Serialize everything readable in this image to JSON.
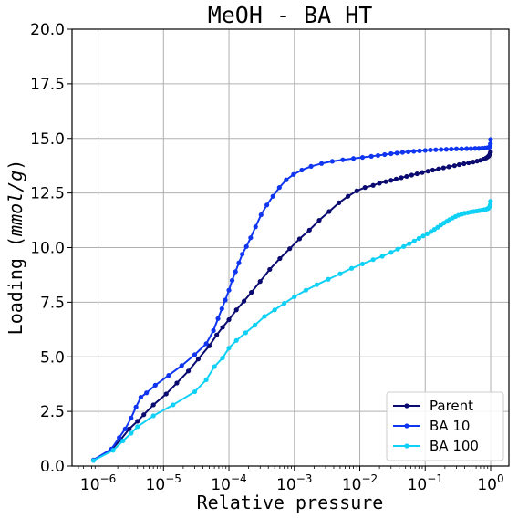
{
  "chart_data": {
    "type": "line",
    "title": "MeOH - BA HT",
    "xlabel": "Relative pressure",
    "ylabel": "Loading (mmol/g)",
    "ylabel_prefix": "Loading",
    "ylabel_unit": "mmol/g",
    "x_scale": "log",
    "xlim": [
      4e-07,
      1.9
    ],
    "ylim": [
      0,
      20
    ],
    "x_ticks": [
      1e-06,
      1e-05,
      0.0001,
      0.001,
      0.01,
      0.1,
      1
    ],
    "x_tick_exponents": [
      "−6",
      "−5",
      "−4",
      "−3",
      "−2",
      "−1",
      "0"
    ],
    "x_tick_base": "10",
    "y_ticks": [
      0,
      2.5,
      5,
      7.5,
      10,
      12.5,
      15,
      17.5,
      20
    ],
    "y_tick_labels": [
      "0.0",
      "2.5",
      "5.0",
      "7.5",
      "10.0",
      "12.5",
      "15.0",
      "17.5",
      "20.0"
    ],
    "grid": true,
    "legend_position": "lower-right",
    "series": [
      {
        "name": "Parent",
        "color": "#0a0a70",
        "x": [
          8.5e-07,
          1.6e-06,
          2.2e-06,
          3e-06,
          4e-06,
          5e-06,
          7e-06,
          1.1e-05,
          1.6e-05,
          2.4e-05,
          3.4e-05,
          5e-05,
          6.5e-05,
          8e-05,
          0.0001,
          0.00013,
          0.00017,
          0.00022,
          0.0003,
          0.00042,
          0.0006,
          0.00085,
          0.0012,
          0.0017,
          0.0024,
          0.0034,
          0.0048,
          0.0066,
          0.009,
          0.012,
          0.016,
          0.02,
          0.025,
          0.03,
          0.036,
          0.043,
          0.052,
          0.062,
          0.075,
          0.09,
          0.11,
          0.13,
          0.16,
          0.19,
          0.23,
          0.28,
          0.33,
          0.39,
          0.46,
          0.54,
          0.62,
          0.7,
          0.78,
          0.85,
          0.9,
          0.94,
          0.97,
          0.985,
          0.995
        ],
        "y": [
          0.27,
          0.75,
          1.2,
          1.7,
          2.05,
          2.35,
          2.8,
          3.3,
          3.8,
          4.35,
          4.9,
          5.5,
          6.0,
          6.35,
          6.7,
          7.15,
          7.55,
          7.95,
          8.45,
          9.0,
          9.5,
          9.95,
          10.4,
          10.8,
          11.25,
          11.65,
          12.05,
          12.35,
          12.6,
          12.75,
          12.85,
          12.95,
          13.02,
          13.08,
          13.14,
          13.2,
          13.26,
          13.32,
          13.38,
          13.44,
          13.5,
          13.55,
          13.6,
          13.65,
          13.7,
          13.75,
          13.8,
          13.84,
          13.88,
          13.92,
          13.96,
          14.0,
          14.05,
          14.1,
          14.15,
          14.2,
          14.27,
          14.33,
          14.38
        ]
      },
      {
        "name": "BA 10",
        "color": "#0f35f0",
        "x": [
          8.5e-07,
          1.6e-06,
          2.1e-06,
          2.6e-06,
          3.2e-06,
          3.8e-06,
          4.5e-06,
          5.5e-06,
          7.5e-06,
          1.2e-05,
          1.9e-05,
          3e-05,
          4.5e-05,
          5.8e-05,
          6.8e-05,
          7.8e-05,
          8.8e-05,
          0.0001,
          0.000112,
          0.000126,
          0.000142,
          0.00016,
          0.000185,
          0.000215,
          0.000255,
          0.00031,
          0.00038,
          0.00047,
          0.00059,
          0.00075,
          0.00097,
          0.0013,
          0.0018,
          0.0026,
          0.0038,
          0.0055,
          0.008,
          0.011,
          0.015,
          0.019,
          0.024,
          0.03,
          0.037,
          0.045,
          0.055,
          0.067,
          0.082,
          0.1,
          0.12,
          0.145,
          0.175,
          0.21,
          0.25,
          0.3,
          0.36,
          0.43,
          0.5,
          0.58,
          0.66,
          0.74,
          0.82,
          0.88,
          0.93,
          0.96,
          0.98,
          0.99,
          0.997
        ],
        "y": [
          0.28,
          0.78,
          1.3,
          1.7,
          2.2,
          2.7,
          3.15,
          3.35,
          3.7,
          4.15,
          4.6,
          5.1,
          5.6,
          6.2,
          6.75,
          7.2,
          7.6,
          8.05,
          8.5,
          8.9,
          9.3,
          9.7,
          10.05,
          10.45,
          10.95,
          11.5,
          11.95,
          12.35,
          12.75,
          13.1,
          13.35,
          13.55,
          13.72,
          13.85,
          13.95,
          14.02,
          14.08,
          14.13,
          14.18,
          14.22,
          14.26,
          14.3,
          14.33,
          14.36,
          14.39,
          14.41,
          14.43,
          14.45,
          14.47,
          14.48,
          14.49,
          14.5,
          14.51,
          14.52,
          14.52,
          14.53,
          14.53,
          14.54,
          14.54,
          14.55,
          14.56,
          14.57,
          14.58,
          14.6,
          14.63,
          14.75,
          14.95
        ]
      },
      {
        "name": "BA 100",
        "color": "#0fd0f5",
        "x": [
          8.5e-07,
          1.7e-06,
          2.4e-06,
          3.2e-06,
          4e-06,
          7e-06,
          1.4e-05,
          3e-05,
          4.5e-05,
          6e-05,
          8e-05,
          0.0001,
          0.00013,
          0.00018,
          0.00025,
          0.00035,
          0.0005,
          0.0007,
          0.001,
          0.0015,
          0.0022,
          0.0033,
          0.005,
          0.0075,
          0.011,
          0.016,
          0.022,
          0.03,
          0.038,
          0.047,
          0.057,
          0.068,
          0.08,
          0.093,
          0.107,
          0.122,
          0.138,
          0.155,
          0.173,
          0.192,
          0.213,
          0.235,
          0.26,
          0.29,
          0.32,
          0.36,
          0.4,
          0.45,
          0.5,
          0.55,
          0.61,
          0.67,
          0.73,
          0.79,
          0.85,
          0.9,
          0.94,
          0.97,
          0.985,
          0.995
        ],
        "y": [
          0.25,
          0.72,
          1.15,
          1.5,
          1.8,
          2.3,
          2.8,
          3.4,
          3.95,
          4.55,
          4.95,
          5.4,
          5.75,
          6.1,
          6.45,
          6.85,
          7.15,
          7.45,
          7.75,
          8.05,
          8.3,
          8.55,
          8.8,
          9.05,
          9.25,
          9.45,
          9.6,
          9.78,
          9.93,
          10.05,
          10.18,
          10.3,
          10.42,
          10.53,
          10.63,
          10.73,
          10.83,
          10.93,
          11.03,
          11.12,
          11.2,
          11.28,
          11.35,
          11.42,
          11.48,
          11.53,
          11.57,
          11.6,
          11.63,
          11.65,
          11.67,
          11.69,
          11.71,
          11.73,
          11.75,
          11.78,
          11.82,
          11.88,
          11.96,
          12.12
        ]
      }
    ]
  }
}
